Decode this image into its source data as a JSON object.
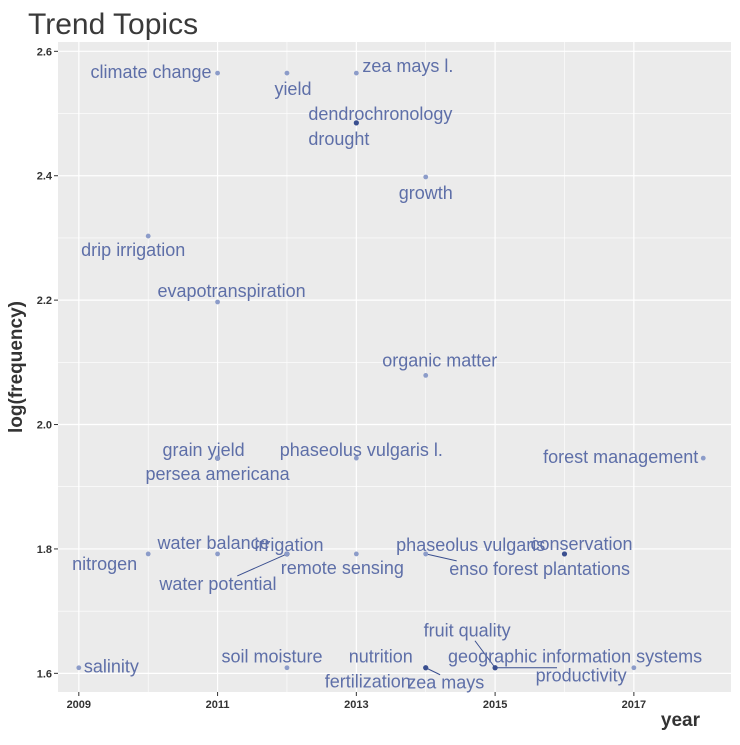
{
  "chart_data": {
    "type": "scatter",
    "title": "Trend Topics",
    "xlabel": "year",
    "ylabel": "log(frequency)",
    "xlim": [
      2008.7,
      2018.4
    ],
    "ylim": [
      1.57,
      2.615
    ],
    "x_ticks": [
      "2009",
      "2011",
      "2013",
      "2015",
      "2017"
    ],
    "y_ticks": [
      "1.6",
      "1.8",
      "2.0",
      "2.2",
      "2.4",
      "2.6"
    ],
    "grid": true,
    "legend": "none",
    "colors": {
      "panel": "#EBEBEB",
      "grid": "#FFFFFF",
      "point_light": "#8C9CC9",
      "point_dark": "#3A4F8F",
      "label": "#5E6FA8",
      "title": "#3A3A3A"
    },
    "points": [
      {
        "label": "climate change",
        "x": 2011,
        "y": 2.565
      },
      {
        "label": "yield",
        "x": 2012,
        "y": 2.565
      },
      {
        "label": "zea mays l.",
        "x": 2013,
        "y": 2.565
      },
      {
        "label": "dendrochronology",
        "x": 2013,
        "y": 2.485
      },
      {
        "label": "drought",
        "x": 2013,
        "y": 2.485
      },
      {
        "label": "growth",
        "x": 2014,
        "y": 2.398
      },
      {
        "label": "drip irrigation",
        "x": 2010,
        "y": 2.303
      },
      {
        "label": "evapotranspiration",
        "x": 2011,
        "y": 2.197
      },
      {
        "label": "organic matter",
        "x": 2014,
        "y": 2.079
      },
      {
        "label": "grain yield",
        "x": 2011,
        "y": 1.946
      },
      {
        "label": "persea americana",
        "x": 2011,
        "y": 1.946
      },
      {
        "label": "phaseolus vulgaris l.",
        "x": 2013,
        "y": 1.946
      },
      {
        "label": "forest management",
        "x": 2018,
        "y": 1.946
      },
      {
        "label": "water balance",
        "x": 2011,
        "y": 1.792
      },
      {
        "label": "nitrogen",
        "x": 2010,
        "y": 1.792
      },
      {
        "label": "water potential",
        "x": 2012,
        "y": 1.792
      },
      {
        "label": "irrigation",
        "x": 2012,
        "y": 1.792
      },
      {
        "label": "remote sensing",
        "x": 2013,
        "y": 1.792
      },
      {
        "label": "phaseolus vulgaris",
        "x": 2014,
        "y": 1.792
      },
      {
        "label": "enso",
        "x": 2014,
        "y": 1.792
      },
      {
        "label": "conservation",
        "x": 2016,
        "y": 1.792
      },
      {
        "label": "forest plantations",
        "x": 2016,
        "y": 1.792
      },
      {
        "label": "salinity",
        "x": 2009,
        "y": 1.609
      },
      {
        "label": "soil moisture",
        "x": 2012,
        "y": 1.609
      },
      {
        "label": "nutrition",
        "x": 2014,
        "y": 1.609
      },
      {
        "label": "fertilization",
        "x": 2014,
        "y": 1.609
      },
      {
        "label": "zea mays",
        "x": 2014,
        "y": 1.609
      },
      {
        "label": "fruit quality",
        "x": 2015,
        "y": 1.609
      },
      {
        "label": "geographic information systems",
        "x": 2015,
        "y": 1.609
      },
      {
        "label": "productivity",
        "x": 2015,
        "y": 1.609
      },
      {
        "label": "",
        "x": 2017,
        "y": 1.609
      }
    ]
  }
}
